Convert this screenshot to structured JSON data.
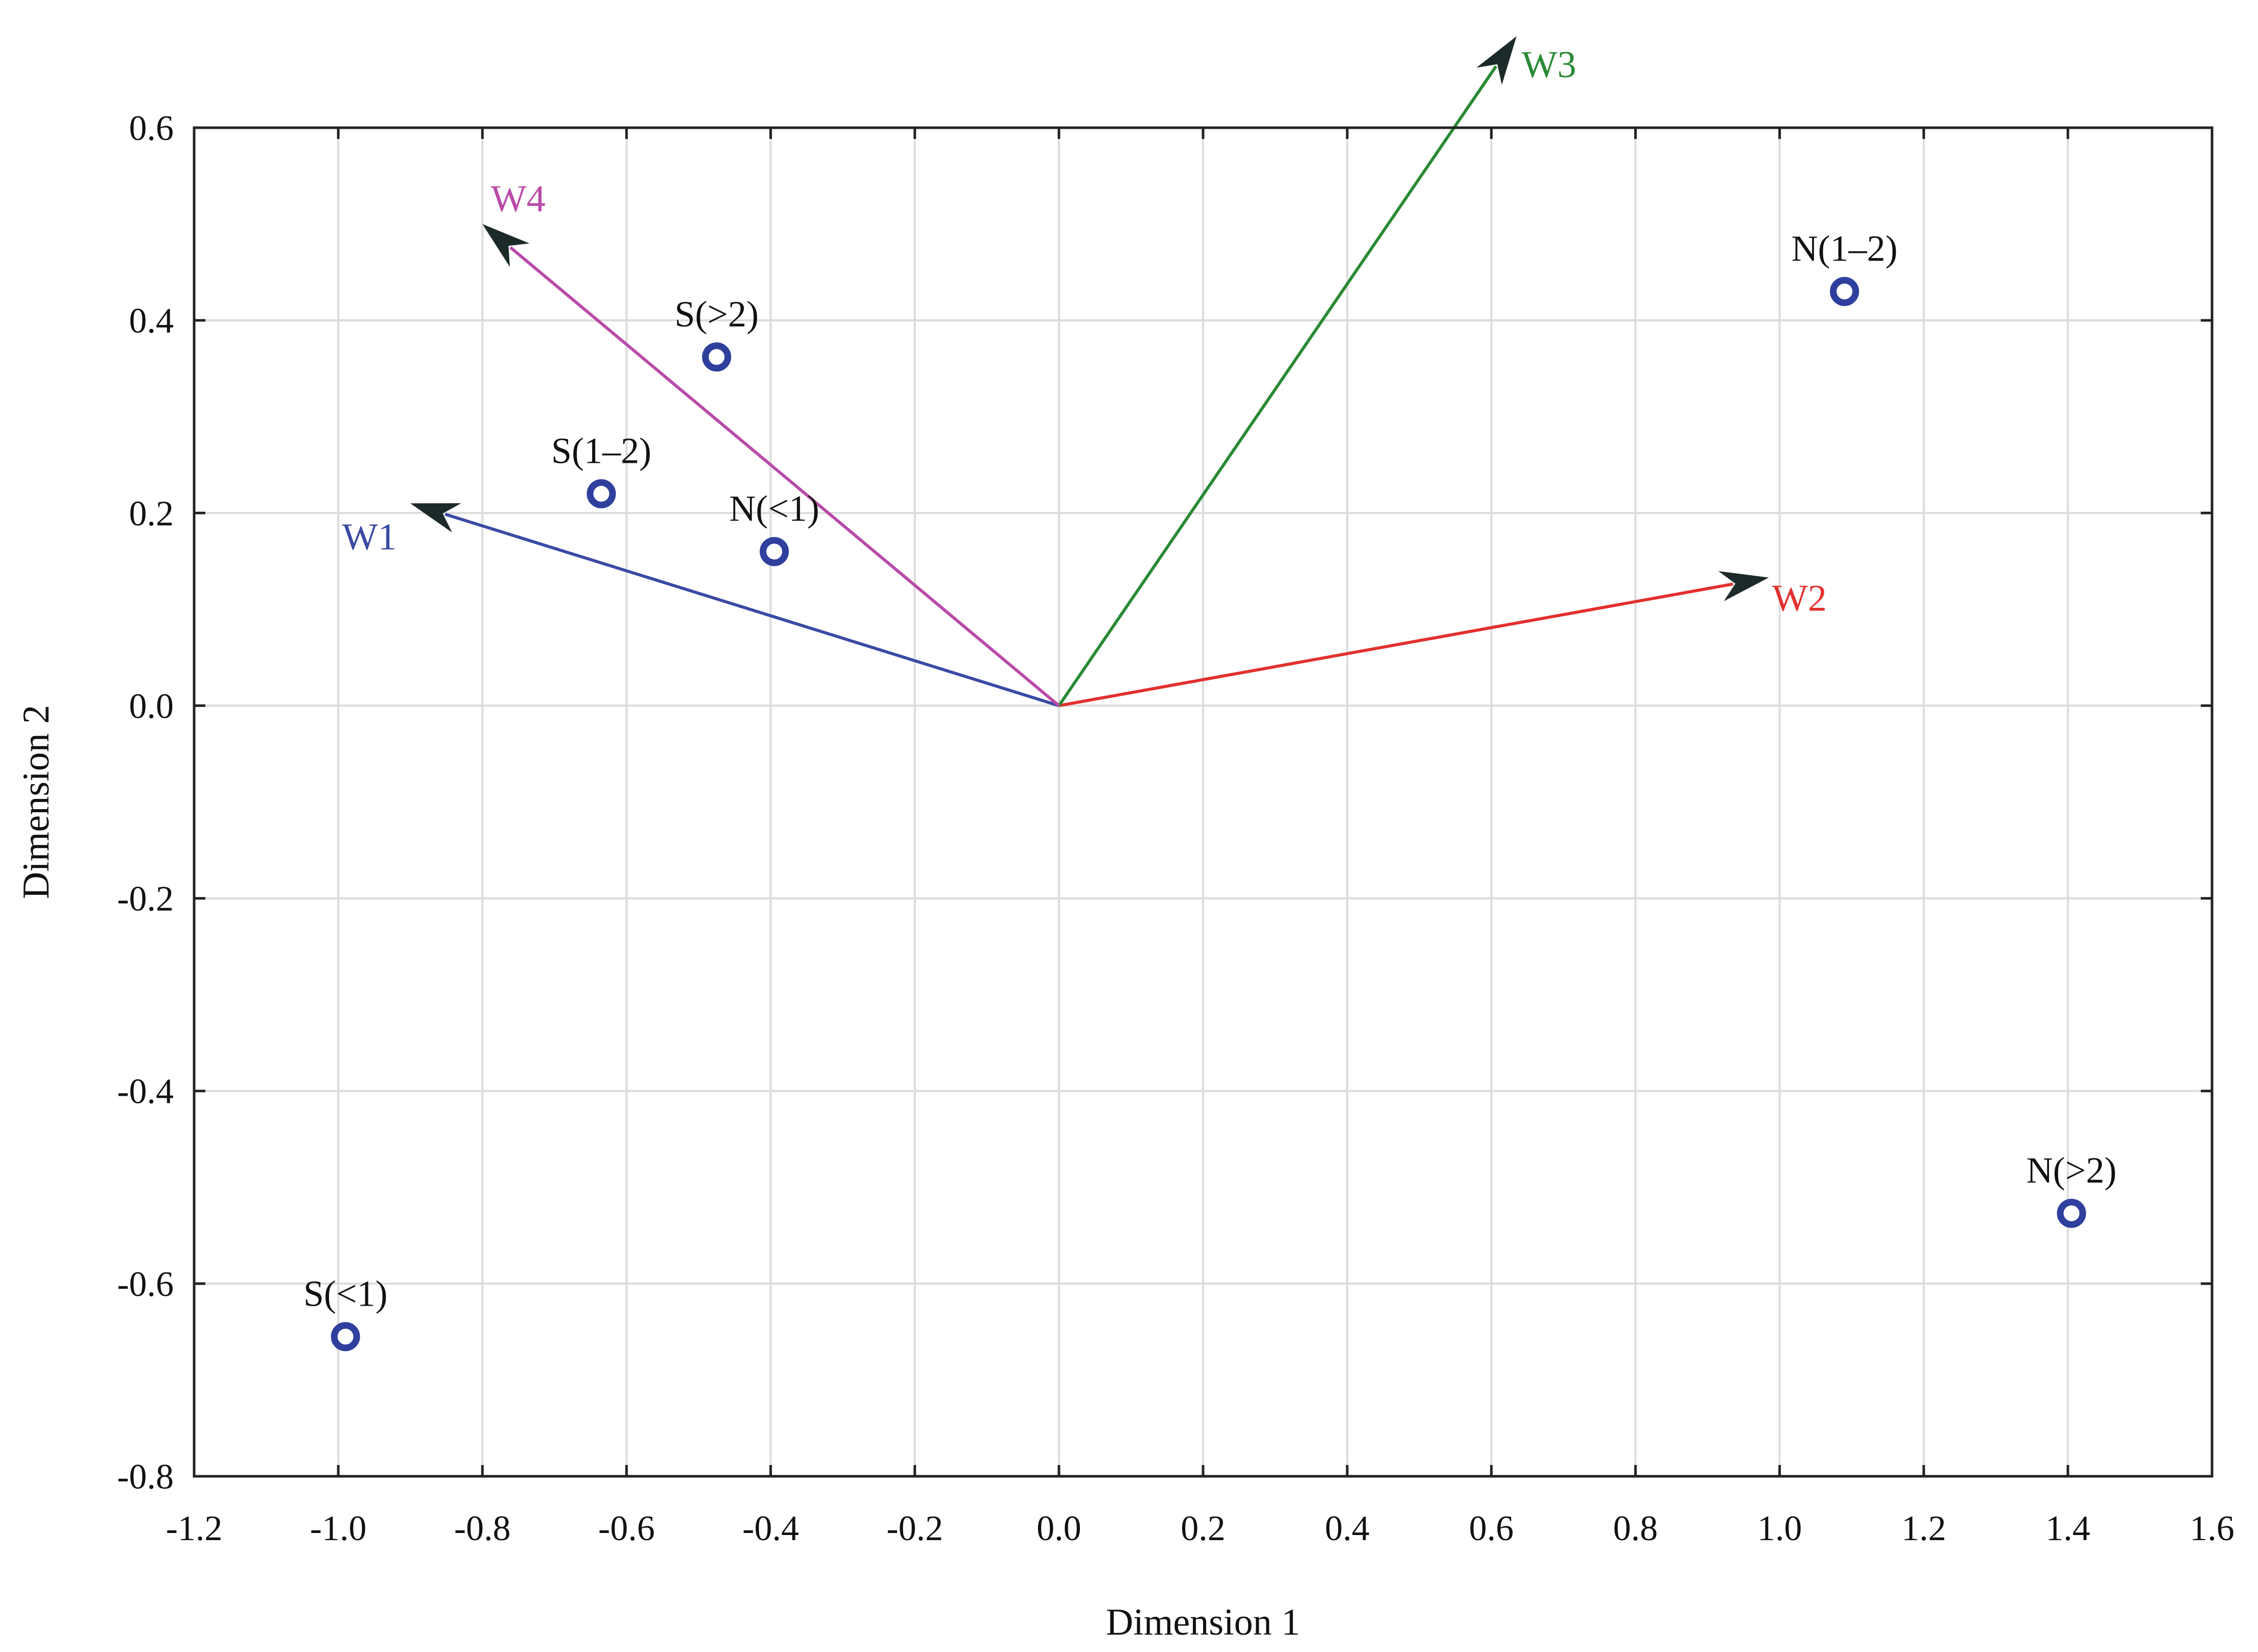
{
  "chart_data": {
    "type": "scatter",
    "xlabel": "Dimension 1",
    "ylabel": "Dimension 2",
    "xlim": [
      -1.2,
      1.6
    ],
    "ylim": [
      -0.8,
      0.6
    ],
    "xticks": [
      "-1.2",
      "-1.0",
      "-0.8",
      "-0.6",
      "-0.4",
      "-0.2",
      "0.0",
      "0.2",
      "0.4",
      "0.6",
      "0.8",
      "1.0",
      "1.2",
      "1.4",
      "1.6"
    ],
    "xtick_values": [
      -1.2,
      -1.0,
      -0.8,
      -0.6,
      -0.4,
      -0.2,
      0.0,
      0.2,
      0.4,
      0.6,
      0.8,
      1.0,
      1.2,
      1.4,
      1.6
    ],
    "yticks": [
      "0.6",
      "0.4",
      "0.2",
      "0.0",
      "-0.2",
      "-0.4",
      "-0.6",
      "-0.8"
    ],
    "ytick_values": [
      0.6,
      0.4,
      0.2,
      0.0,
      -0.2,
      -0.4,
      -0.6,
      -0.8
    ],
    "grid": true,
    "point_color": "#2e3f9e",
    "points": [
      {
        "label": "S(<1)",
        "x": -0.99,
        "y": -0.655
      },
      {
        "label": "S(1–2)",
        "x": -0.635,
        "y": 0.22
      },
      {
        "label": "S(>2)",
        "x": -0.475,
        "y": 0.362
      },
      {
        "label": "N(<1)",
        "x": -0.395,
        "y": 0.16
      },
      {
        "label": "N(1–2)",
        "x": 1.09,
        "y": 0.43
      },
      {
        "label": "N(>2)",
        "x": 1.405,
        "y": -0.527
      }
    ],
    "vectors": [
      {
        "label": "W1",
        "x": -0.9,
        "y": 0.21,
        "color": "#3a4aa4"
      },
      {
        "label": "W2",
        "x": 0.985,
        "y": 0.133,
        "color": "#e2302e"
      },
      {
        "label": "W3",
        "x": 0.635,
        "y": 0.695,
        "color": "#2a8a34"
      },
      {
        "label": "W4",
        "x": -0.8,
        "y": 0.5,
        "color": "#b94aa8"
      }
    ]
  }
}
